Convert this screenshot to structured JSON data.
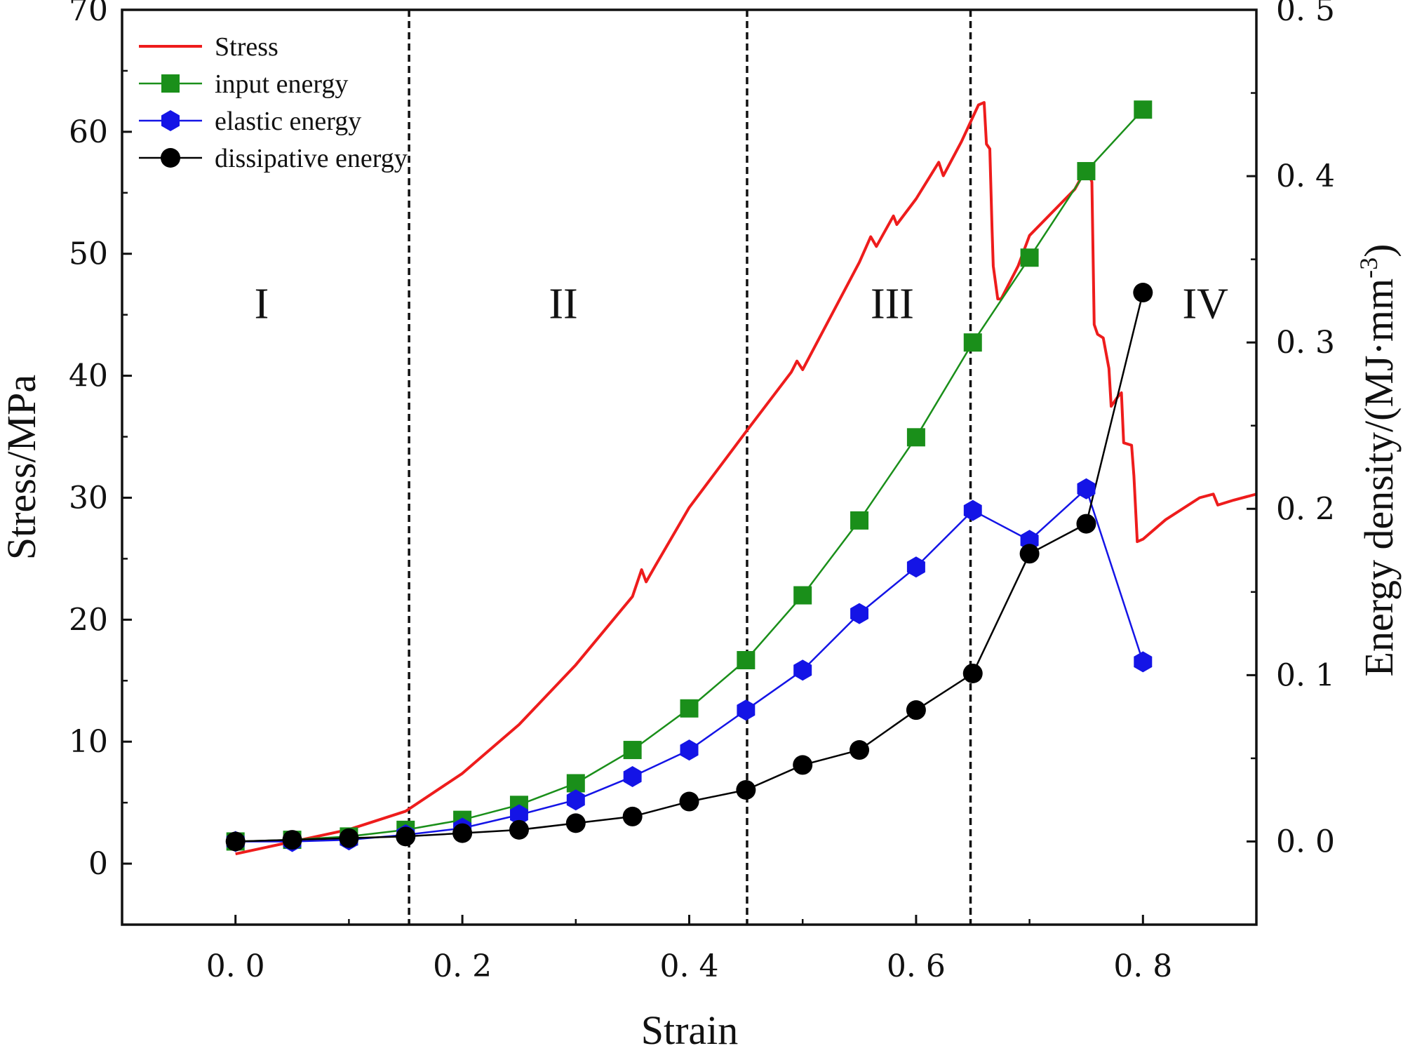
{
  "chart_data": {
    "type": "line",
    "title": "",
    "xlabel": "Strain",
    "ylabel_left": "Stress/MPa",
    "ylabel_right_parts": [
      "Energy density/(MJ·mm",
      "-3",
      ")"
    ],
    "xlim": [
      -0.1,
      0.9
    ],
    "ylim_left": [
      -5,
      70
    ],
    "ylim_right": [
      -0.05,
      0.5
    ],
    "x_ticks": [
      0.0,
      0.2,
      0.4,
      0.6,
      0.8
    ],
    "x_tick_labels": [
      "0. 0",
      "0. 2",
      "0. 4",
      "0. 6",
      "0. 8"
    ],
    "y_left_ticks": [
      0,
      10,
      20,
      30,
      40,
      50,
      60,
      70
    ],
    "y_left_tick_labels": [
      "0",
      "10",
      "20",
      "30",
      "40",
      "50",
      "60",
      "70"
    ],
    "y_right_ticks": [
      0.0,
      0.1,
      0.2,
      0.3,
      0.4,
      0.5
    ],
    "y_right_tick_labels": [
      "0. 0",
      "0. 1",
      "0. 2",
      "0. 3",
      "0. 4",
      "0. 5"
    ],
    "stage_dividers": [
      0.153,
      0.451,
      0.648
    ],
    "stage_labels": [
      {
        "text": "I",
        "x": 0.023,
        "y": 46
      },
      {
        "text": "II",
        "x": 0.289,
        "y": 46
      },
      {
        "text": "III",
        "x": 0.579,
        "y": 46
      },
      {
        "text": "IV",
        "x": 0.855,
        "y": 46
      }
    ],
    "legend_position": "top-left",
    "series": [
      {
        "name": "Stress",
        "axis": "left",
        "color": "#ee1c1c",
        "marker": "none",
        "x": [
          0.0,
          0.05,
          0.1,
          0.15,
          0.2,
          0.25,
          0.3,
          0.35,
          0.358,
          0.362,
          0.37,
          0.4,
          0.45,
          0.49,
          0.495,
          0.5,
          0.55,
          0.56,
          0.565,
          0.58,
          0.583,
          0.6,
          0.62,
          0.624,
          0.64,
          0.655,
          0.66,
          0.662,
          0.665,
          0.667,
          0.668,
          0.672,
          0.675,
          0.69,
          0.7,
          0.74,
          0.75,
          0.755,
          0.757,
          0.76,
          0.765,
          0.77,
          0.772,
          0.778,
          0.781,
          0.783,
          0.79,
          0.792,
          0.795,
          0.8,
          0.82,
          0.85,
          0.862,
          0.866,
          0.88,
          0.9
        ],
        "y": [
          0.8,
          1.8,
          2.8,
          4.3,
          7.4,
          11.4,
          16.3,
          21.9,
          24.1,
          23.1,
          24.4,
          29.2,
          35.4,
          40.3,
          41.2,
          40.5,
          49.3,
          51.4,
          50.6,
          53.1,
          52.4,
          54.5,
          57.5,
          56.4,
          59.2,
          62.2,
          62.4,
          59.0,
          58.6,
          52.0,
          49.0,
          46.3,
          46.3,
          49.0,
          51.5,
          55.3,
          57.0,
          55.9,
          44.2,
          43.4,
          43.1,
          40.6,
          37.5,
          38.3,
          38.6,
          34.5,
          34.3,
          31.8,
          26.4,
          26.6,
          28.2,
          30.0,
          30.3,
          29.4,
          29.8,
          30.3
        ]
      },
      {
        "name": "input energy",
        "axis": "right",
        "color": "#1a8f1a",
        "marker": "square",
        "x": [
          0.0,
          0.05,
          0.1,
          0.15,
          0.2,
          0.25,
          0.3,
          0.35,
          0.4,
          0.45,
          0.5,
          0.55,
          0.6,
          0.65,
          0.7,
          0.75,
          0.8
        ],
        "y": [
          0.0,
          0.001,
          0.003,
          0.007,
          0.013,
          0.022,
          0.035,
          0.055,
          0.08,
          0.109,
          0.148,
          0.193,
          0.243,
          0.3,
          0.351,
          0.403,
          0.44
        ]
      },
      {
        "name": "elastic energy",
        "axis": "right",
        "color": "#1414e6",
        "marker": "hexagon",
        "x": [
          0.0,
          0.05,
          0.1,
          0.15,
          0.2,
          0.25,
          0.3,
          0.35,
          0.4,
          0.45,
          0.5,
          0.55,
          0.6,
          0.65,
          0.7,
          0.75,
          0.8
        ],
        "y": [
          0.0,
          0.0,
          0.001,
          0.004,
          0.008,
          0.016,
          0.025,
          0.039,
          0.055,
          0.079,
          0.103,
          0.137,
          0.165,
          0.199,
          0.181,
          0.212,
          0.108
        ]
      },
      {
        "name": "dissipative energy",
        "axis": "right",
        "color": "#000000",
        "marker": "circle",
        "x": [
          0.0,
          0.05,
          0.1,
          0.15,
          0.2,
          0.25,
          0.3,
          0.35,
          0.4,
          0.45,
          0.5,
          0.55,
          0.6,
          0.65,
          0.7,
          0.75,
          0.8
        ],
        "y": [
          0.0,
          0.001,
          0.002,
          0.003,
          0.005,
          0.007,
          0.011,
          0.015,
          0.024,
          0.031,
          0.046,
          0.055,
          0.079,
          0.101,
          0.173,
          0.191,
          0.33
        ]
      }
    ]
  }
}
